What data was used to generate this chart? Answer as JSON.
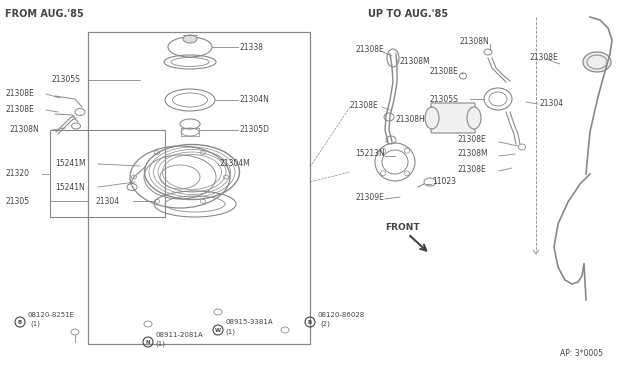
{
  "bg_color": "#ffffff",
  "lc": "#888888",
  "dc": "#444444",
  "tc": "#444444",
  "fig_width": 6.4,
  "fig_height": 3.72,
  "dpi": 100,
  "title_left": "FROM AUG.'85",
  "title_right": "UP TO AUG.'85",
  "doc_number": "AP: 3*0005"
}
